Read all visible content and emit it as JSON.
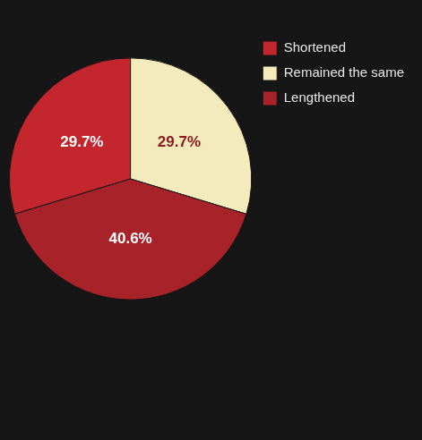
{
  "chart_data": {
    "type": "pie",
    "categories": [
      "Shortened",
      "Remained the same",
      "Lengthened"
    ],
    "values": [
      29.7,
      29.7,
      40.6
    ],
    "value_labels": [
      "29.7%",
      "29.7%",
      "40.6%"
    ],
    "colors": [
      "#c4262e",
      "#f4ebbd",
      "#a8222a"
    ],
    "legend": "right",
    "data_labels": true
  }
}
